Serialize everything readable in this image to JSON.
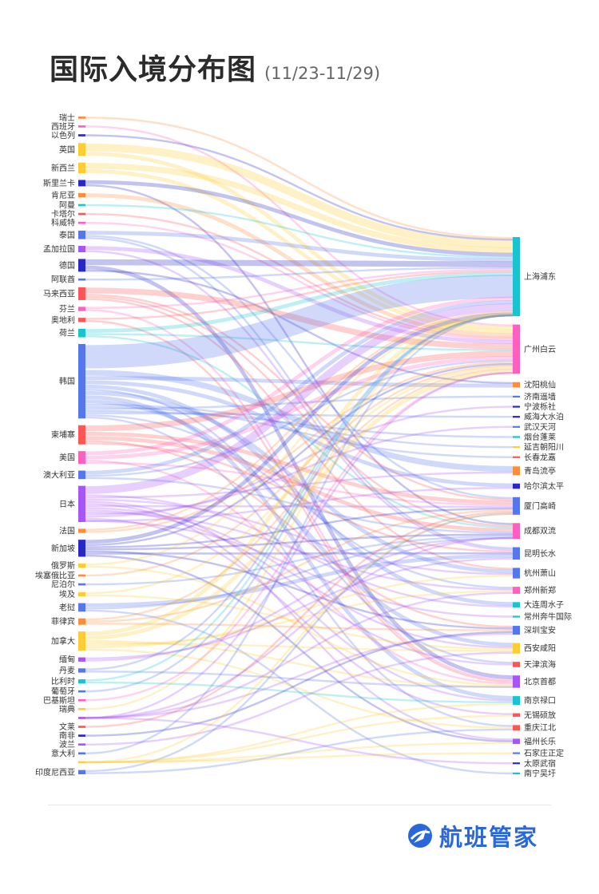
{
  "title": "国际入境分布图",
  "subtitle": "(11/23-11/29)",
  "brand": {
    "name": "航班管家",
    "icon": "plane-globe-logo",
    "color": "#2a67d8"
  },
  "chart_data": {
    "type": "sankey",
    "sources": [
      {
        "name": "瑞士",
        "value": 1,
        "color": "#ff8c3a"
      },
      {
        "name": "西班牙",
        "value": 1,
        "color": "#ff5fbf"
      },
      {
        "name": "以色列",
        "value": 1,
        "color": "#2828c8"
      },
      {
        "name": "英国",
        "value": 6,
        "color": "#ffcc33"
      },
      {
        "name": "新西兰",
        "value": 5,
        "color": "#ffcc33"
      },
      {
        "name": "斯里兰卡",
        "value": 3,
        "color": "#2828c8"
      },
      {
        "name": "肯尼亚",
        "value": 2,
        "color": "#ff8c3a"
      },
      {
        "name": "阿曼",
        "value": 1,
        "color": "#18c4d0"
      },
      {
        "name": "卡塔尔",
        "value": 1,
        "color": "#ff5555"
      },
      {
        "name": "科威特",
        "value": 1,
        "color": "#ff5fbf"
      },
      {
        "name": "泰国",
        "value": 4,
        "color": "#5577ee"
      },
      {
        "name": "孟加拉国",
        "value": 3,
        "color": "#a855f7"
      },
      {
        "name": "德国",
        "value": 6,
        "color": "#2828c8"
      },
      {
        "name": "阿联酋",
        "value": 1,
        "color": "#5577ee"
      },
      {
        "name": "马来西亚",
        "value": 6,
        "color": "#ff5555"
      },
      {
        "name": "芬兰",
        "value": 2,
        "color": "#ff5fbf"
      },
      {
        "name": "奥地利",
        "value": 2,
        "color": "#ff5555"
      },
      {
        "name": "荷兰",
        "value": 4,
        "color": "#18c4d0"
      },
      {
        "name": "韩国",
        "value": 35,
        "color": "#5577ee"
      },
      {
        "name": "柬埔寨",
        "value": 9,
        "color": "#ff5555"
      },
      {
        "name": "美国",
        "value": 6,
        "color": "#ff5fbf"
      },
      {
        "name": "澳大利亚",
        "value": 4,
        "color": "#5577ee"
      },
      {
        "name": "日本",
        "value": 17,
        "color": "#a855f7"
      },
      {
        "name": "法国",
        "value": 2,
        "color": "#ff8c3a"
      },
      {
        "name": "新加坡",
        "value": 8,
        "color": "#2828c8"
      },
      {
        "name": "俄罗斯",
        "value": 2,
        "color": "#ffcc33"
      },
      {
        "name": "埃塞俄比亚",
        "value": 1,
        "color": "#ff8c3a"
      },
      {
        "name": "尼泊尔",
        "value": 1,
        "color": "#5577ee"
      },
      {
        "name": "埃及",
        "value": 2,
        "color": "#ffcc33"
      },
      {
        "name": "老挝",
        "value": 4,
        "color": "#5577ee"
      },
      {
        "name": "菲律宾",
        "value": 3,
        "color": "#ff8c3a"
      },
      {
        "name": "加拿大",
        "value": 9,
        "color": "#ffcc33"
      },
      {
        "name": "缅甸",
        "value": 2,
        "color": "#a855f7"
      },
      {
        "name": "丹麦",
        "value": 2,
        "color": "#5577ee"
      },
      {
        "name": "比利时",
        "value": 2,
        "color": "#18c4d0"
      },
      {
        "name": "葡萄牙",
        "value": 1,
        "color": "#5577ee"
      },
      {
        "name": "巴基斯坦",
        "value": 1,
        "color": "#ff5fbf"
      },
      {
        "name": "瑞典",
        "value": 1,
        "color": "#ffcc33"
      },
      {
        "name": "",
        "value": 1,
        "color": "#a855f7"
      },
      {
        "name": "文莱",
        "value": 1,
        "color": "#ff5555"
      },
      {
        "name": "南非",
        "value": 1,
        "color": "#2828c8"
      },
      {
        "name": "波兰",
        "value": 1,
        "color": "#a855f7"
      },
      {
        "name": "意大利",
        "value": 1,
        "color": "#5577ee"
      },
      {
        "name": "",
        "value": 1,
        "color": "#ffcc33"
      },
      {
        "name": "印度尼西亚",
        "value": 2,
        "color": "#5577ee"
      }
    ],
    "targets": [
      {
        "name": "上海浦东",
        "value": 45,
        "color": "#18c4d0"
      },
      {
        "name": "广州白云",
        "value": 28,
        "color": "#ff5fbf"
      },
      {
        "name": "沈阳桃仙",
        "value": 3,
        "color": "#ff8c3a"
      },
      {
        "name": "济南遥墙",
        "value": 1,
        "color": "#5577ee"
      },
      {
        "name": "宁波栎社",
        "value": 1,
        "color": "#2828c8"
      },
      {
        "name": "威海大水泊",
        "value": 1,
        "color": "#2828c8"
      },
      {
        "name": "武汉天河",
        "value": 1,
        "color": "#5577ee"
      },
      {
        "name": "烟台蓬莱",
        "value": 1,
        "color": "#18c4d0"
      },
      {
        "name": "延吉朝阳川",
        "value": 1,
        "color": "#ffcc33"
      },
      {
        "name": "长春龙嘉",
        "value": 1,
        "color": "#ff5555"
      },
      {
        "name": "青岛流亭",
        "value": 5,
        "color": "#ff8c3a"
      },
      {
        "name": "哈尔滨太平",
        "value": 3,
        "color": "#2828c8"
      },
      {
        "name": "厦门高崎",
        "value": 10,
        "color": "#5577ee"
      },
      {
        "name": "成都双流",
        "value": 9,
        "color": "#ff5fbf"
      },
      {
        "name": "昆明长水",
        "value": 7,
        "color": "#5577ee"
      },
      {
        "name": "杭州萧山",
        "value": 6,
        "color": "#5577ee"
      },
      {
        "name": "郑州新郑",
        "value": 4,
        "color": "#ff5fbf"
      },
      {
        "name": "大连周水子",
        "value": 3,
        "color": "#18c4d0"
      },
      {
        "name": "常州奔牛国际",
        "value": 1,
        "color": "#18c4d0"
      },
      {
        "name": "深圳宝安",
        "value": 5,
        "color": "#5577ee"
      },
      {
        "name": "西安咸阳",
        "value": 6,
        "color": "#ffcc33"
      },
      {
        "name": "天津滨海",
        "value": 3,
        "color": "#ff5555"
      },
      {
        "name": "北京首都",
        "value": 7,
        "color": "#a855f7"
      },
      {
        "name": "南京禄口",
        "value": 5,
        "color": "#18c4d0"
      },
      {
        "name": "无锡硕放",
        "value": 2,
        "color": "#ff5555"
      },
      {
        "name": "重庆江北",
        "value": 3,
        "color": "#ff5555"
      },
      {
        "name": "福州长乐",
        "value": 3,
        "color": "#a855f7"
      },
      {
        "name": "石家庄正定",
        "value": 1,
        "color": "#5577ee"
      },
      {
        "name": "太原武宿",
        "value": 1,
        "color": "#2828c8"
      },
      {
        "name": "南宁吴圩",
        "value": 1,
        "color": "#18c4d0"
      }
    ],
    "links": [
      [
        "瑞士",
        "上海浦东",
        1
      ],
      [
        "西班牙",
        "广州白云",
        1
      ],
      [
        "以色列",
        "上海浦东",
        1
      ],
      [
        "英国",
        "上海浦东",
        4
      ],
      [
        "英国",
        "广州白云",
        2
      ],
      [
        "新西兰",
        "上海浦东",
        3
      ],
      [
        "新西兰",
        "广州白云",
        2
      ],
      [
        "斯里兰卡",
        "上海浦东",
        2
      ],
      [
        "斯里兰卡",
        "成都双流",
        1
      ],
      [
        "肯尼亚",
        "广州白云",
        2
      ],
      [
        "阿曼",
        "上海浦东",
        1
      ],
      [
        "卡塔尔",
        "广州白云",
        1
      ],
      [
        "科威特",
        "广州白云",
        1
      ],
      [
        "泰国",
        "上海浦东",
        2
      ],
      [
        "泰国",
        "厦门高崎",
        1
      ],
      [
        "泰国",
        "昆明长水",
        1
      ],
      [
        "孟加拉国",
        "广州白云",
        2
      ],
      [
        "孟加拉国",
        "昆明长水",
        1
      ],
      [
        "德国",
        "上海浦东",
        3
      ],
      [
        "德国",
        "北京首都",
        2
      ],
      [
        "德国",
        "沈阳桃仙",
        1
      ],
      [
        "阿联酋",
        "上海浦东",
        1
      ],
      [
        "马来西亚",
        "广州白云",
        3
      ],
      [
        "马来西亚",
        "厦门高崎",
        1
      ],
      [
        "马来西亚",
        "成都双流",
        1
      ],
      [
        "马来西亚",
        "杭州萧山",
        1
      ],
      [
        "芬兰",
        "上海浦东",
        1
      ],
      [
        "芬兰",
        "北京首都",
        1
      ],
      [
        "奥地利",
        "上海浦东",
        1
      ],
      [
        "奥地利",
        "北京首都",
        1
      ],
      [
        "荷兰",
        "上海浦东",
        2
      ],
      [
        "荷兰",
        "广州白云",
        1
      ],
      [
        "荷兰",
        "成都双流",
        1
      ],
      [
        "韩国",
        "上海浦东",
        12
      ],
      [
        "韩国",
        "青岛流亭",
        3
      ],
      [
        "韩国",
        "沈阳桃仙",
        2
      ],
      [
        "韩国",
        "哈尔滨太平",
        2
      ],
      [
        "韩国",
        "大连周水子",
        2
      ],
      [
        "韩国",
        "天津滨海",
        1
      ],
      [
        "韩国",
        "杭州萧山",
        2
      ],
      [
        "韩国",
        "南京禄口",
        2
      ],
      [
        "韩国",
        "西安咸阳",
        2
      ],
      [
        "韩国",
        "延吉朝阳川",
        1
      ],
      [
        "韩国",
        "长春龙嘉",
        1
      ],
      [
        "韩国",
        "济南遥墙",
        1
      ],
      [
        "韩国",
        "烟台蓬莱",
        1
      ],
      [
        "韩国",
        "威海大水泊",
        1
      ],
      [
        "韩国",
        "郑州新郑",
        1
      ],
      [
        "韩国",
        "重庆江北",
        1
      ],
      [
        "柬埔寨",
        "广州白云",
        3
      ],
      [
        "柬埔寨",
        "厦门高崎",
        2
      ],
      [
        "柬埔寨",
        "成都双流",
        2
      ],
      [
        "柬埔寨",
        "深圳宝安",
        1
      ],
      [
        "柬埔寨",
        "昆明长水",
        1
      ],
      [
        "美国",
        "上海浦东",
        2
      ],
      [
        "美国",
        "广州白云",
        2
      ],
      [
        "美国",
        "北京首都",
        1
      ],
      [
        "美国",
        "厦门高崎",
        1
      ],
      [
        "澳大利亚",
        "上海浦东",
        2
      ],
      [
        "澳大利亚",
        "广州白云",
        1
      ],
      [
        "澳大利亚",
        "成都双流",
        1
      ],
      [
        "日本",
        "上海浦东",
        4
      ],
      [
        "日本",
        "大连周水子",
        1
      ],
      [
        "日本",
        "青岛流亭",
        1
      ],
      [
        "日本",
        "杭州萧山",
        1
      ],
      [
        "日本",
        "南京禄口",
        1
      ],
      [
        "日本",
        "福州长乐",
        1
      ],
      [
        "日本",
        "厦门高崎",
        1
      ],
      [
        "日本",
        "西安咸阳",
        1
      ],
      [
        "日本",
        "天津滨海",
        1
      ],
      [
        "日本",
        "郑州新郑",
        1
      ],
      [
        "日本",
        "武汉天河",
        1
      ],
      [
        "日本",
        "宁波栎社",
        1
      ],
      [
        "日本",
        "无锡硕放",
        1
      ],
      [
        "日本",
        "常州奔牛国际",
        1
      ],
      [
        "日本",
        "哈尔滨太平",
        1
      ],
      [
        "法国",
        "上海浦东",
        1
      ],
      [
        "法国",
        "广州白云",
        1
      ],
      [
        "新加坡",
        "上海浦东",
        2
      ],
      [
        "新加坡",
        "广州白云",
        1
      ],
      [
        "新加坡",
        "厦门高崎",
        1
      ],
      [
        "新加坡",
        "成都双流",
        1
      ],
      [
        "新加坡",
        "深圳宝安",
        1
      ],
      [
        "新加坡",
        "昆明长水",
        1
      ],
      [
        "新加坡",
        "福州长乐",
        1
      ],
      [
        "俄罗斯",
        "上海浦东",
        1
      ],
      [
        "俄罗斯",
        "北京首都",
        1
      ],
      [
        "埃塞俄比亚",
        "广州白云",
        1
      ],
      [
        "尼泊尔",
        "成都双流",
        1
      ],
      [
        "埃及",
        "广州白云",
        1
      ],
      [
        "埃及",
        "西安咸阳",
        1
      ],
      [
        "老挝",
        "昆明长水",
        2
      ],
      [
        "老挝",
        "成都双流",
        1
      ],
      [
        "老挝",
        "南宁吴圩",
        1
      ],
      [
        "菲律宾",
        "广州白云",
        1
      ],
      [
        "菲律宾",
        "厦门高崎",
        1
      ],
      [
        "菲律宾",
        "深圳宝安",
        1
      ],
      [
        "加拿大",
        "上海浦东",
        2
      ],
      [
        "加拿大",
        "广州白云",
        2
      ],
      [
        "加拿大",
        "北京首都",
        1
      ],
      [
        "加拿大",
        "西安咸阳",
        1
      ],
      [
        "加拿大",
        "郑州新郑",
        1
      ],
      [
        "加拿大",
        "杭州萧山",
        1
      ],
      [
        "加拿大",
        "重庆江北",
        1
      ],
      [
        "缅甸",
        "昆明长水",
        1
      ],
      [
        "缅甸",
        "成都双流",
        1
      ],
      [
        "丹麦",
        "上海浦东",
        1
      ],
      [
        "丹麦",
        "北京首都",
        1
      ],
      [
        "比利时",
        "上海浦东",
        1
      ],
      [
        "比利时",
        "南京禄口",
        1
      ],
      [
        "葡萄牙",
        "上海浦东",
        1
      ],
      [
        "巴基斯坦",
        "广州白云",
        1
      ],
      [
        "瑞典",
        "上海浦东",
        1
      ],
      [
        "",
        "广州白云",
        1
      ],
      [
        "文莱",
        "厦门高崎",
        1
      ],
      [
        "南非",
        "深圳宝安",
        1
      ],
      [
        "波兰",
        "西安咸阳",
        1
      ],
      [
        "意大利",
        "上海浦东",
        1
      ],
      [
        "",
        "福州长乐",
        1
      ],
      [
        "印度尼西亚",
        "厦门高崎",
        1
      ],
      [
        "印度尼西亚",
        "重庆江北",
        1
      ],
      [
        "",
        "深圳宝安",
        1
      ],
      [
        "",
        "南京禄口",
        1
      ],
      [
        "",
        "郑州新郑",
        1
      ],
      [
        "",
        "厦门高崎",
        1
      ],
      [
        "",
        "成都双流",
        1
      ],
      [
        "",
        "石家庄正定",
        1
      ],
      [
        "",
        "太原武宿",
        1
      ],
      [
        "",
        "无锡硕放",
        1
      ]
    ]
  }
}
